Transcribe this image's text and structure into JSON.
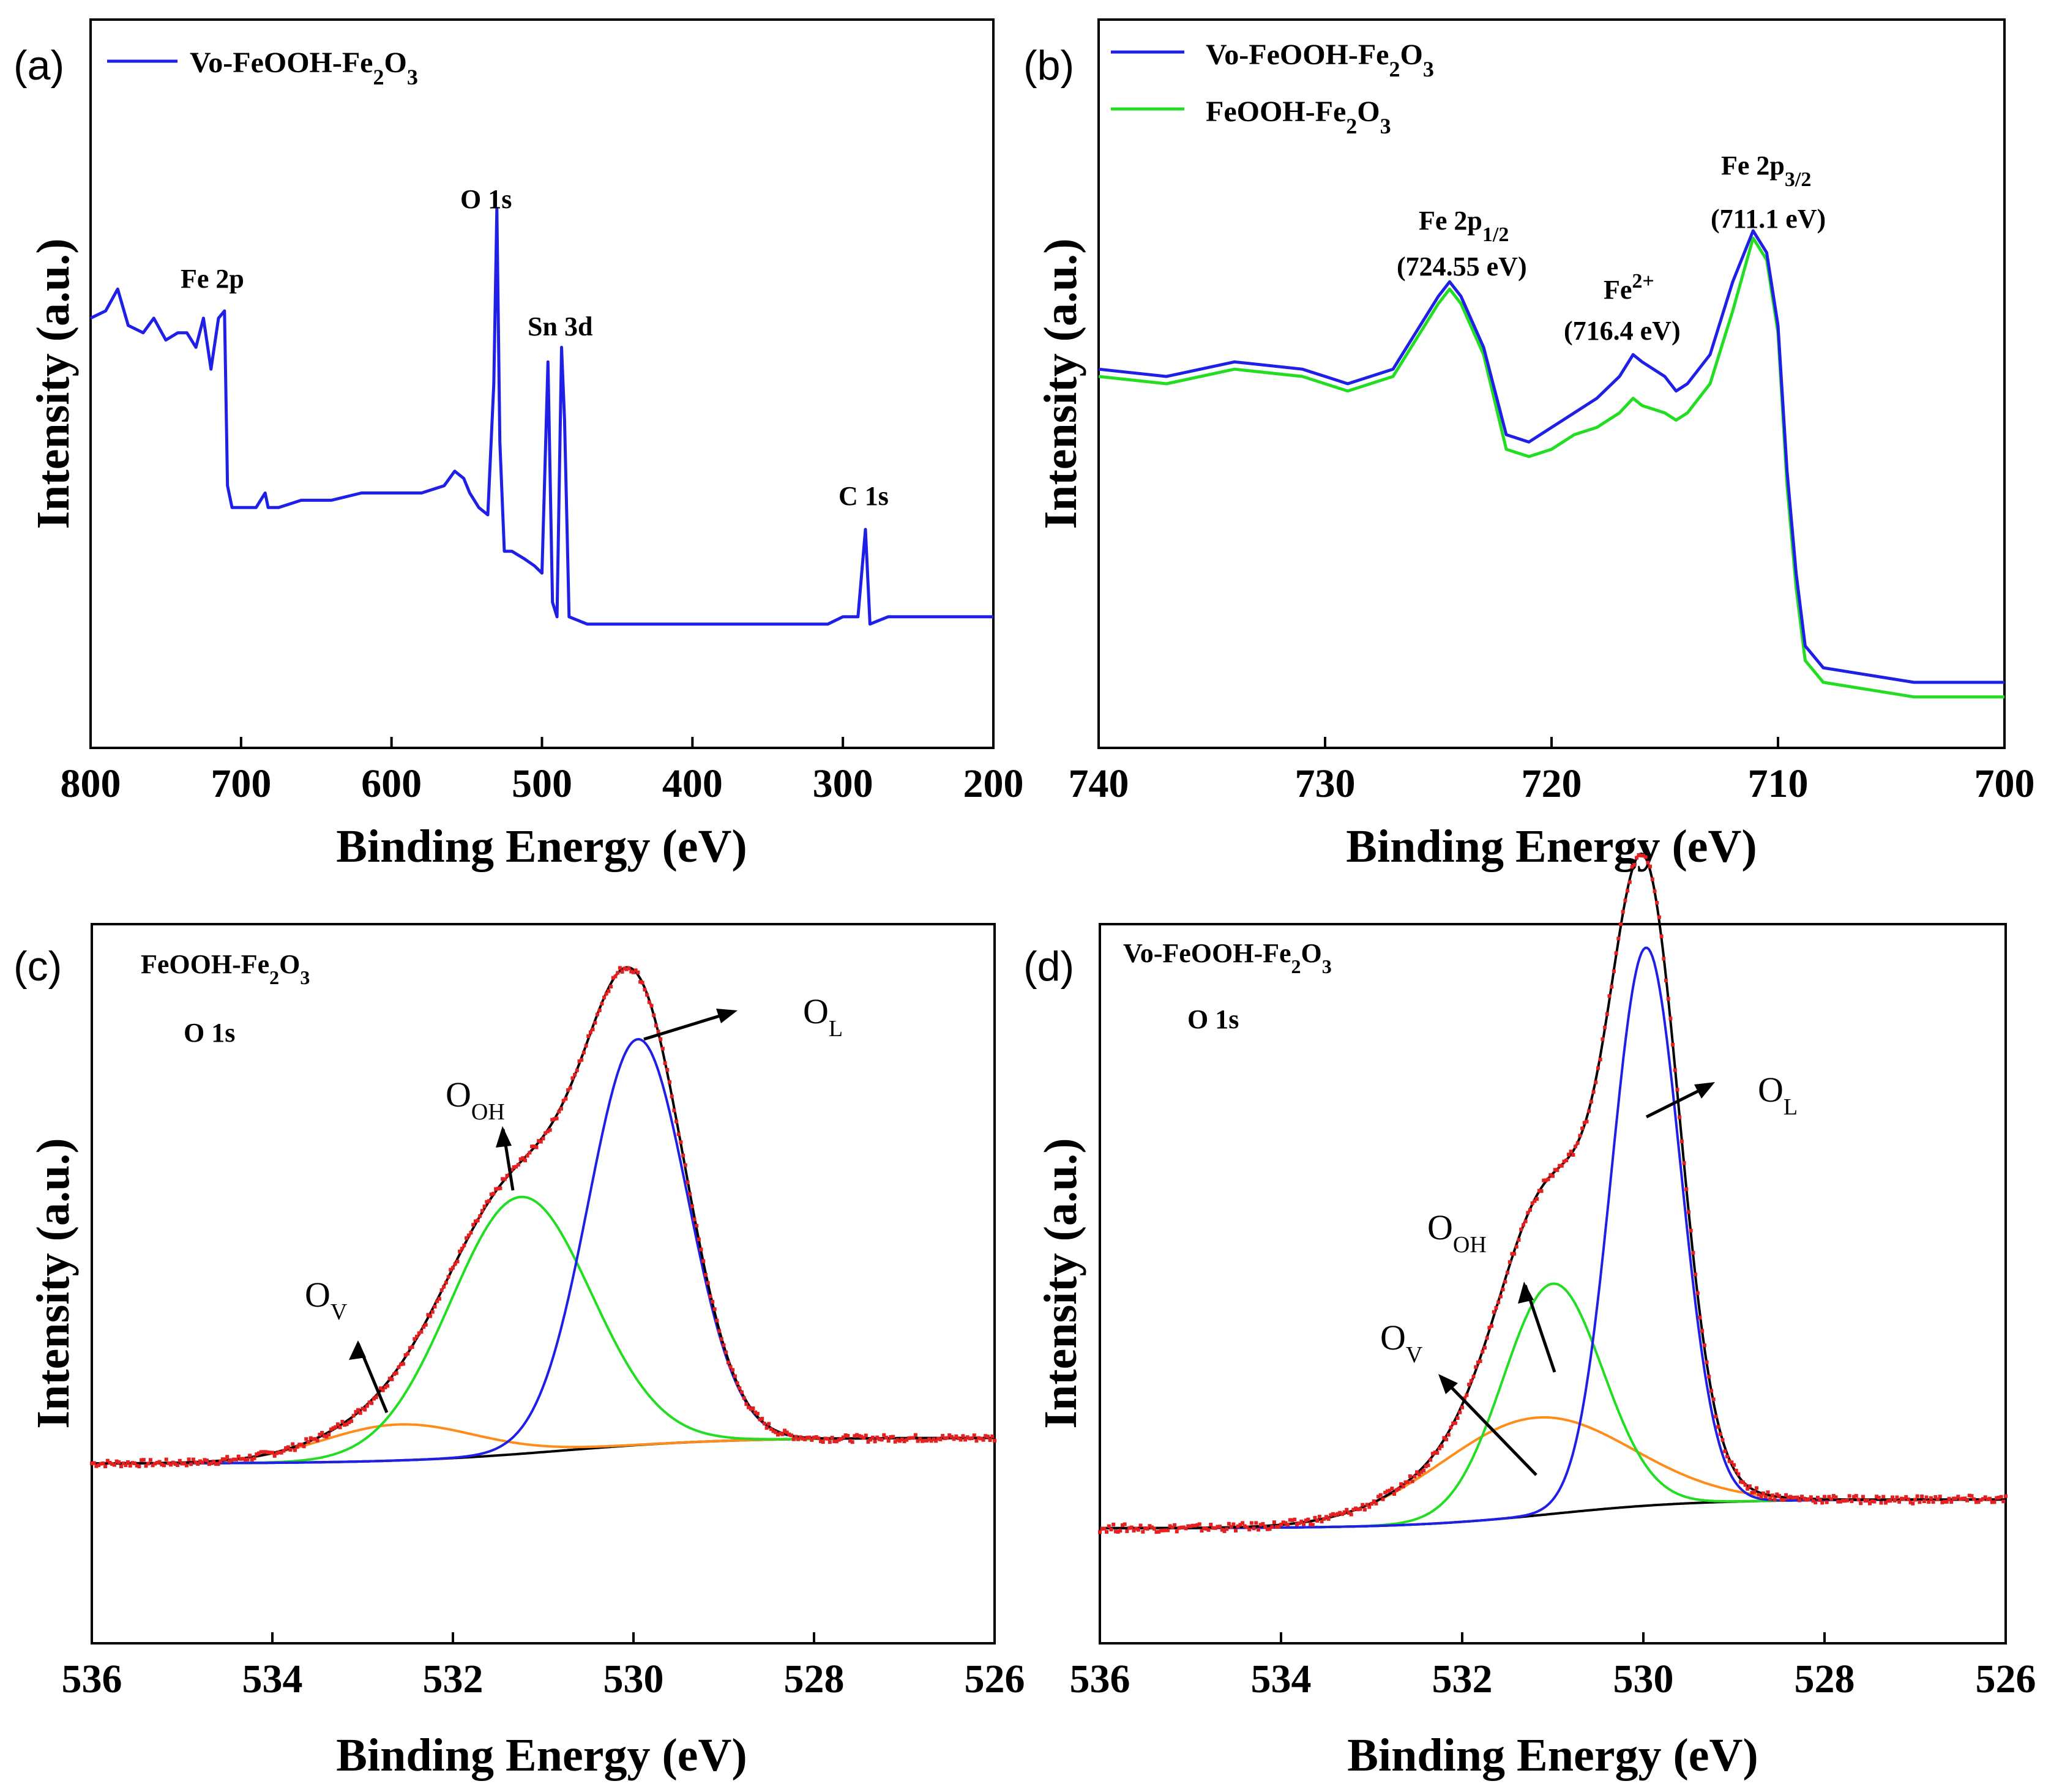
{
  "chart_data": [
    {
      "id": "a",
      "type": "line",
      "panel_label": "(a)",
      "xlabel": "Binding Energy (eV)",
      "ylabel": "Intensity (a.u.)",
      "xlim": [
        800,
        200
      ],
      "ylim": [
        0,
        100
      ],
      "xticks": [
        800,
        700,
        600,
        500,
        400,
        300,
        200
      ],
      "legend": {
        "placement": "top-left",
        "entries": [
          {
            "name": "Vo-FeOOH-Fe2O3",
            "color": "#1f1fe6"
          }
        ]
      },
      "series": [
        {
          "name": "Vo-FeOOH-Fe2O3",
          "color": "#1f1fe6",
          "x": [
            800,
            790,
            782,
            775,
            765,
            758,
            750,
            742,
            736,
            730,
            725,
            720,
            715,
            711,
            709,
            706,
            703,
            700,
            690,
            684,
            682,
            675,
            660,
            640,
            620,
            600,
            580,
            565,
            558,
            552,
            548,
            542,
            536,
            532,
            530,
            528,
            525,
            520,
            512,
            505,
            500,
            496,
            493,
            490,
            487,
            485,
            482,
            470,
            450,
            400,
            350,
            310,
            300,
            290,
            285,
            282,
            270,
            250,
            230,
            200
          ],
          "values": [
            59,
            60,
            63,
            58,
            57,
            59,
            56,
            57,
            57,
            55,
            59,
            52,
            59,
            60,
            36,
            33,
            33,
            33,
            33,
            35,
            33,
            33,
            34,
            34,
            35,
            35,
            35,
            36,
            38,
            37,
            35,
            33,
            32,
            50,
            74,
            42,
            27,
            27,
            26,
            25,
            24,
            53,
            20,
            18,
            55,
            45,
            18,
            17,
            17,
            17,
            17,
            17,
            18,
            18,
            30,
            17,
            18,
            18,
            18,
            18
          ]
        }
      ],
      "annotations": [
        "Fe 2p",
        "O 1s",
        "Sn 3d",
        "C 1s"
      ]
    },
    {
      "id": "b",
      "type": "line",
      "panel_label": "(b)",
      "xlabel": "Binding Energy (eV)",
      "ylabel": "Intensity (a.u.)",
      "xlim": [
        740,
        700
      ],
      "ylim": [
        0,
        100
      ],
      "xticks": [
        740,
        730,
        720,
        710,
        700
      ],
      "legend": {
        "placement": "top-left",
        "entries": [
          {
            "name": "Vo-FeOOH-Fe2O3",
            "color": "#1f1fe6"
          },
          {
            "name": "FeOOH-Fe2O3",
            "color": "#22dd22"
          }
        ]
      },
      "series": [
        {
          "name": "Vo-FeOOH-Fe2O3",
          "color": "#1f1fe6",
          "x": [
            740,
            737,
            734,
            731,
            729,
            727,
            726,
            725,
            724.5,
            724,
            723,
            722,
            721,
            720,
            719,
            718,
            717,
            716.4,
            716,
            715,
            714.5,
            714,
            713,
            712,
            711.1,
            710.5,
            710,
            709.6,
            709.2,
            708.8,
            708,
            706,
            704,
            702,
            700
          ],
          "values": [
            52,
            51,
            53,
            52,
            50,
            52,
            57,
            62,
            64,
            62,
            55,
            43,
            42,
            44,
            46,
            48,
            51,
            54,
            53,
            51,
            49,
            50,
            54,
            64,
            71,
            68,
            58,
            38,
            24,
            14,
            11,
            10,
            9,
            9,
            9
          ]
        },
        {
          "name": "FeOOH-Fe2O3",
          "color": "#22dd22",
          "x": [
            740,
            737,
            734,
            731,
            729,
            727,
            726,
            725,
            724.5,
            724,
            723,
            722,
            721,
            720,
            719,
            718,
            717,
            716.4,
            716,
            715,
            714.5,
            714,
            713,
            712,
            711.1,
            710.5,
            710,
            709.6,
            709.2,
            708.8,
            708,
            706,
            704,
            702,
            700
          ],
          "values": [
            51,
            50,
            52,
            51,
            49,
            51,
            56,
            61,
            63,
            61,
            54,
            41,
            40,
            41,
            43,
            44,
            46,
            48,
            47,
            46,
            45,
            46,
            50,
            60,
            70,
            67,
            57,
            36,
            22,
            12,
            9,
            8,
            7,
            7,
            7
          ]
        }
      ],
      "annotations": [
        {
          "label": "Fe 2p",
          "sub": "1/2",
          "value": "(724.55 eV)"
        },
        {
          "label": "Fe",
          "sup": "2+",
          "value": "(716.4 eV)"
        },
        {
          "label": "Fe 2p",
          "sub": "3/2",
          "value": "(711.1 eV)"
        }
      ]
    },
    {
      "id": "c",
      "type": "line",
      "panel_label": "(c)",
      "sample": "FeOOH-Fe2O3",
      "core_level": "O 1s",
      "xlabel": "Binding Energy (eV)",
      "ylabel": "Intensity (a.u.)",
      "xlim": [
        536,
        526
      ],
      "ylim": [
        -40,
        100
      ],
      "xticks": [
        536,
        534,
        532,
        530,
        528,
        526
      ],
      "background": {
        "x0": 536,
        "x1": 526,
        "y0": 0,
        "y1": -5,
        "center": 530.8,
        "width": 0.9,
        "color": "#000000"
      },
      "components": [
        {
          "name": "O_V",
          "center": 532.6,
          "height": 7,
          "sigma": 0.85,
          "color": "#ff8c1a"
        },
        {
          "name": "O_OH",
          "center": 531.25,
          "height": 50,
          "sigma": 0.78,
          "color": "#22dd22"
        },
        {
          "name": "O_L",
          "center": 529.95,
          "height": 79,
          "sigma": 0.55,
          "color": "#1f1fe6"
        }
      ],
      "envelope_color": "#000000",
      "data_color": "#e62020",
      "peak_labels": [
        {
          "main": "O",
          "sub": "V"
        },
        {
          "main": "O",
          "sub": "OH"
        },
        {
          "main": "O",
          "sub": "L"
        }
      ]
    },
    {
      "id": "d",
      "type": "line",
      "panel_label": "(d)",
      "sample": "Vo-FeOOH-Fe2O3",
      "core_level": "O 1s",
      "xlabel": "Binding Energy (eV)",
      "ylabel": "Intensity (a.u.)",
      "xlim": [
        536,
        526
      ],
      "ylim": [
        -25,
        100
      ],
      "xticks": [
        536,
        534,
        532,
        530,
        528,
        526
      ],
      "background": {
        "x0": 536,
        "x1": 526,
        "y0": 0,
        "y1": -5,
        "center": 531.0,
        "width": 0.8,
        "color": "#000000"
      },
      "components": [
        {
          "name": "O_V",
          "center": 531.2,
          "height": 17,
          "sigma": 1.05,
          "color": "#ff8c1a"
        },
        {
          "name": "O_OH",
          "center": 531.0,
          "height": 40,
          "sigma": 0.55,
          "color": "#22dd22"
        },
        {
          "name": "O_L",
          "center": 529.97,
          "height": 97,
          "sigma": 0.38,
          "color": "#1f1fe6"
        }
      ],
      "envelope_color": "#000000",
      "data_color": "#e62020",
      "peak_labels": [
        {
          "main": "O",
          "sub": "OH"
        },
        {
          "main": "O",
          "sub": "V"
        },
        {
          "main": "O",
          "sub": "L"
        }
      ]
    }
  ]
}
